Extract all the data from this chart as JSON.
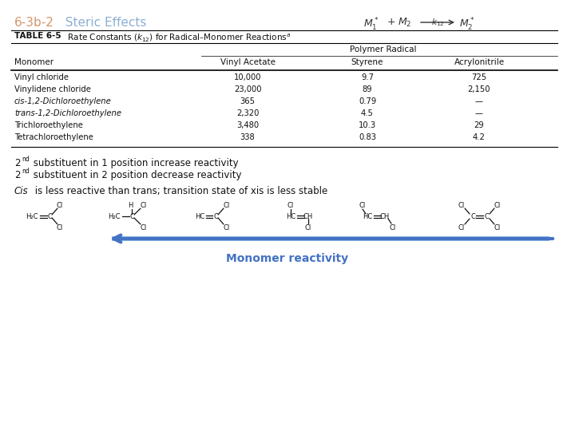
{
  "title_number": "6-3b-2",
  "title_text": "  Steric Effects",
  "title_number_color": "#D4956A",
  "title_text_color": "#8BAFD4",
  "col_header_group": "Polymer Radical",
  "col_headers": [
    "Monomer",
    "Vinyl Acetate",
    "Styrene",
    "Acrylonitrile"
  ],
  "rows": [
    [
      "Vinyl chloride",
      "10,000",
      "9.7",
      "725"
    ],
    [
      "Vinylidene chloride",
      "23,000",
      "89",
      "2,150"
    ],
    [
      "cis-1,2-Dichloroethylene",
      "365",
      "0.79",
      "—"
    ],
    [
      "trans-1,2-Dichloroethylene",
      "2,320",
      "4.5",
      "—"
    ],
    [
      "Trichloroethylene",
      "3,480",
      "10.3",
      "29"
    ],
    [
      "Tetrachloroethylene",
      "338",
      "0.83",
      "4.2"
    ]
  ],
  "italic_rows": [
    2,
    3
  ],
  "arrow_label": "Monomer reactivity",
  "arrow_label_color": "#4472C4",
  "bg_color": "#FFFFFF",
  "text_color": "#000000"
}
